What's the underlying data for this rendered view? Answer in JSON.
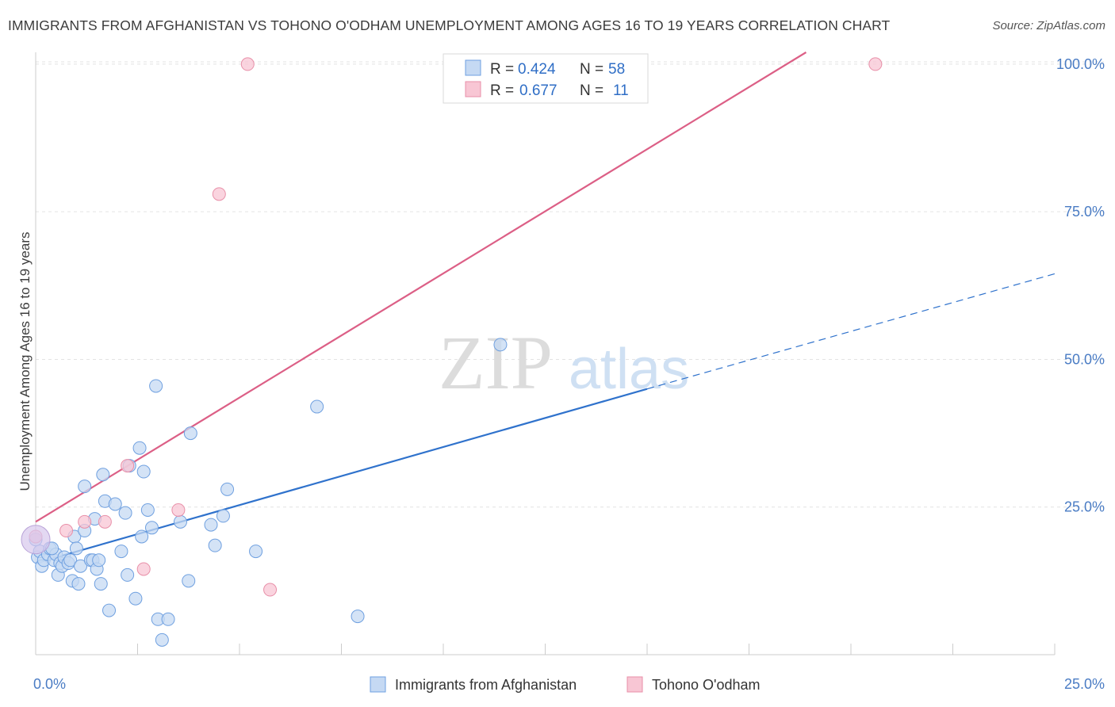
{
  "chart_data": {
    "type": "scatter",
    "title": "IMMIGRANTS FROM AFGHANISTAN VS TOHONO O'ODHAM UNEMPLOYMENT AMONG AGES 16 TO 19 YEARS CORRELATION CHART",
    "source": "Source: ZipAtlas.com",
    "xlabel": "",
    "ylabel": "Unemployment Among Ages 16 to 19 years",
    "xlim": [
      0,
      25
    ],
    "ylim": [
      0,
      102
    ],
    "x_tick_labels": [
      {
        "value": 0,
        "label": "0.0%"
      },
      {
        "value": 25,
        "label": "25.0%"
      }
    ],
    "y_tick_labels": [
      {
        "value": 25,
        "label": "25.0%"
      },
      {
        "value": 50,
        "label": "50.0%"
      },
      {
        "value": 75,
        "label": "75.0%"
      },
      {
        "value": 100,
        "label": "100.0%"
      }
    ],
    "watermark": {
      "zip": "ZIP",
      "atlas": "atlas"
    },
    "legend": {
      "r_label": "R =",
      "n_label": "N =",
      "entries": [
        {
          "r": "0.424",
          "n": "58"
        },
        {
          "r": "0.677",
          "n": "11"
        }
      ]
    },
    "series": [
      {
        "name": "Immigrants from Afghanistan",
        "color": "#6fa0e0",
        "fill": "#c5d9f3",
        "line_color": "#2f72cc",
        "trend": {
          "x0": 0,
          "y0": 15.5,
          "x1": 15,
          "y1": 45,
          "dash_to_x": 25,
          "dash_to_y": 64.5
        },
        "points": [
          [
            0.05,
            16.5
          ],
          [
            0.1,
            17.5
          ],
          [
            0.15,
            15
          ],
          [
            0.2,
            16
          ],
          [
            0.3,
            17
          ],
          [
            0.35,
            18
          ],
          [
            0.45,
            16
          ],
          [
            0.5,
            17
          ],
          [
            0.55,
            13.5
          ],
          [
            0.6,
            15.5
          ],
          [
            0.65,
            15
          ],
          [
            0.7,
            16.5
          ],
          [
            0.8,
            15.5
          ],
          [
            0.85,
            16
          ],
          [
            0.9,
            12.5
          ],
          [
            0.95,
            20
          ],
          [
            1.0,
            18
          ],
          [
            1.05,
            12
          ],
          [
            1.1,
            15
          ],
          [
            1.2,
            21
          ],
          [
            1.2,
            28.5
          ],
          [
            1.35,
            16
          ],
          [
            1.4,
            16
          ],
          [
            1.45,
            23
          ],
          [
            1.5,
            14.5
          ],
          [
            1.55,
            16
          ],
          [
            1.6,
            12
          ],
          [
            1.65,
            30.5
          ],
          [
            1.7,
            26
          ],
          [
            1.8,
            7.5
          ],
          [
            1.95,
            25.5
          ],
          [
            2.1,
            17.5
          ],
          [
            2.2,
            24
          ],
          [
            2.25,
            13.5
          ],
          [
            2.3,
            32
          ],
          [
            2.45,
            9.5
          ],
          [
            2.55,
            35
          ],
          [
            2.6,
            20
          ],
          [
            2.65,
            31
          ],
          [
            2.75,
            24.5
          ],
          [
            2.85,
            21.5
          ],
          [
            2.95,
            45.5
          ],
          [
            3.0,
            6
          ],
          [
            3.1,
            2.5
          ],
          [
            3.25,
            6
          ],
          [
            3.55,
            22.5
          ],
          [
            3.75,
            12.5
          ],
          [
            3.8,
            37.5
          ],
          [
            4.3,
            22
          ],
          [
            4.4,
            18.5
          ],
          [
            4.6,
            23.5
          ],
          [
            4.7,
            28
          ],
          [
            5.4,
            17.5
          ],
          [
            6.9,
            42
          ],
          [
            7.9,
            6.5
          ],
          [
            11.4,
            52.5
          ],
          [
            0.0,
            19.5
          ],
          [
            0.4,
            18
          ]
        ]
      },
      {
        "name": "Tohono O'odham",
        "color": "#e88fa8",
        "fill": "#f8c6d4",
        "line_color": "#dc5f86",
        "trend": {
          "x0": 0,
          "y0": 22.5,
          "x1": 18.9,
          "y1": 102
        },
        "points": [
          [
            0.0,
            20
          ],
          [
            0.75,
            21
          ],
          [
            1.2,
            22.5
          ],
          [
            1.7,
            22.5
          ],
          [
            2.25,
            32
          ],
          [
            2.65,
            14.5
          ],
          [
            3.5,
            24.5
          ],
          [
            4.5,
            78
          ],
          [
            5.2,
            100
          ],
          [
            5.75,
            11
          ],
          [
            20.6,
            100
          ]
        ]
      }
    ]
  }
}
